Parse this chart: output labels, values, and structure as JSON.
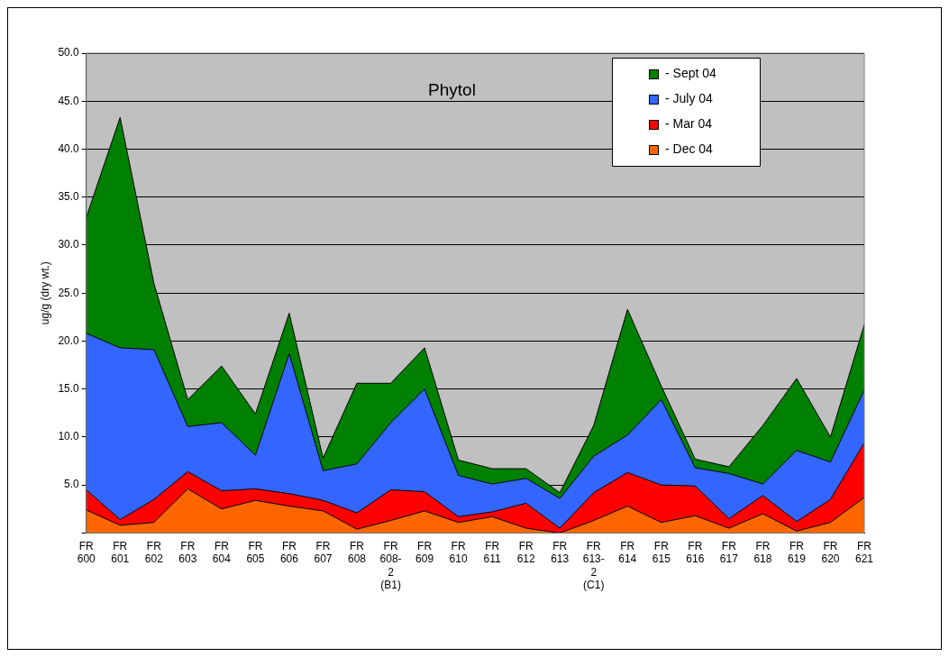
{
  "chart_data": {
    "type": "area",
    "title": "Phytol",
    "ylabel": "ug/g (dry wt.)",
    "categories": [
      "FR\n600",
      "FR\n601",
      "FR\n602",
      "FR\n603",
      "FR\n604",
      "FR\n605",
      "FR\n606",
      "FR\n607",
      "FR\n608",
      "FR\n608-\n2\n(B1)",
      "FR\n609",
      "FR\n610",
      "FR\n611",
      "FR\n612",
      "FR\n613",
      "FR\n613-\n2\n(C1)",
      "FR\n614",
      "FR\n615",
      "FR\n616",
      "FR\n617",
      "FR\n618",
      "FR\n619",
      "FR\n620",
      "FR\n621"
    ],
    "stacked": true,
    "series": [
      {
        "name": "- Dec 04",
        "color": "#ff6600",
        "values": [
          2.4,
          0.8,
          1.1,
          4.6,
          2.5,
          3.4,
          2.8,
          2.3,
          0.4,
          1.3,
          2.3,
          1.1,
          1.7,
          0.5,
          0,
          1.3,
          2.8,
          1.1,
          1.8,
          0.5,
          2.0,
          0.2,
          1.1,
          3.7
        ]
      },
      {
        "name": "- Mar 04",
        "color": "#ff0000",
        "values": [
          2.1,
          0.6,
          2.4,
          1.8,
          1.9,
          1.2,
          1.3,
          1.1,
          1.7,
          3.2,
          2.0,
          0.6,
          0.5,
          2.6,
          0.5,
          2.9,
          3.5,
          3.9,
          3.1,
          1.0,
          1.9,
          1.0,
          2.4,
          5.7
        ]
      },
      {
        "name": "- July 04",
        "color": "#3366ff",
        "values": [
          16.3,
          17.9,
          15.6,
          4.7,
          7.1,
          3.5,
          14.6,
          3.1,
          5.1,
          7.0,
          10.7,
          4.3,
          2.9,
          2.6,
          3.1,
          3.8,
          3.9,
          8.9,
          1.9,
          4.7,
          1.2,
          7.4,
          3.9,
          5.5
        ]
      },
      {
        "name": "- Sept 04",
        "color": "#008000",
        "values": [
          12.1,
          24.0,
          6.9,
          2.8,
          5.9,
          4.3,
          4.2,
          1.3,
          8.4,
          4.1,
          4.3,
          1.6,
          1.6,
          1.0,
          0.6,
          3.2,
          13.1,
          1.4,
          0.9,
          0.7,
          6.1,
          7.5,
          2.6,
          6.8
        ]
      }
    ],
    "ylim": [
      0,
      50
    ],
    "yticks": [
      {
        "value": 0,
        "label": null
      },
      {
        "value": 5,
        "label": "5.0"
      },
      {
        "value": 10,
        "label": "10.0"
      },
      {
        "value": 15,
        "label": "15.0"
      },
      {
        "value": 20,
        "label": "20.0"
      },
      {
        "value": 25,
        "label": "25.0"
      },
      {
        "value": 30,
        "label": "30.0"
      },
      {
        "value": 35,
        "label": "35.0"
      },
      {
        "value": 40,
        "label": "40.0"
      },
      {
        "value": 45,
        "label": "45.0"
      },
      {
        "value": 50,
        "label": "50.0"
      }
    ],
    "grid": "y",
    "legend": "top right",
    "marker": "none"
  }
}
